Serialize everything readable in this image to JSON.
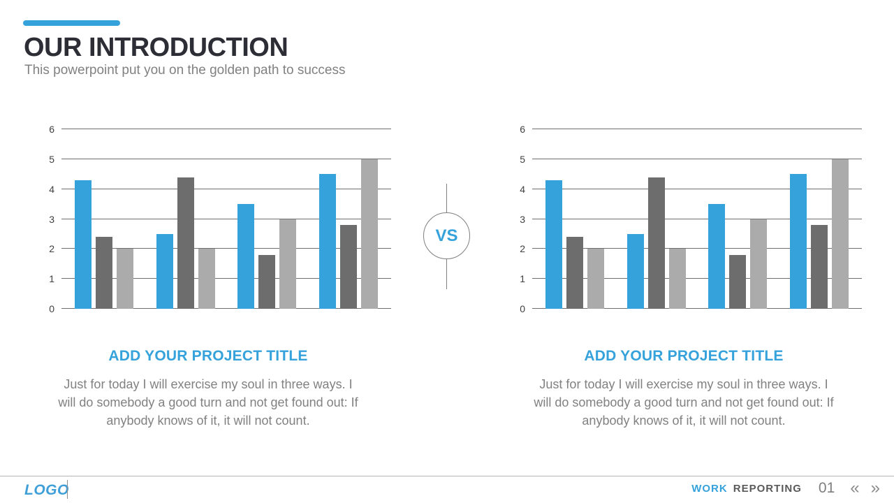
{
  "header": {
    "title": "OUR INTRODUCTION",
    "subtitle": "This powerpoint put you on the golden path to success"
  },
  "vs_label": "VS",
  "captions": [
    {
      "title": "ADD YOUR PROJECT TITLE",
      "body": "Just for today I will exercise my soul in three ways. I will do somebody a good turn and not get found out: If anybody knows of it, it will not count."
    },
    {
      "title": "ADD YOUR PROJECT TITLE",
      "body": "Just for today I will exercise my soul in three ways. I will do somebody a good turn and not get found out: If anybody knows of it, it will not count."
    }
  ],
  "footer": {
    "logo": "LOGO",
    "work": "WORK",
    "reporting": "REPORTING",
    "page_number": "01",
    "prev_icon": "«",
    "next_icon": "»"
  },
  "colors": {
    "accent_blue": "#35a2db",
    "bar_dark_gray": "#6d6d6d",
    "bar_light_gray": "#ababab",
    "gridline": "#6f6f6f",
    "title_text": "#2d2d36",
    "body_text": "#818181"
  },
  "chart_data": [
    {
      "type": "bar",
      "title": "",
      "categories": [
        "",
        "",
        "",
        ""
      ],
      "series": [
        {
          "name": "blue",
          "color": "#35a2db",
          "values": [
            4.3,
            2.5,
            3.5,
            4.5
          ]
        },
        {
          "name": "dark-gray",
          "color": "#6d6d6d",
          "values": [
            2.4,
            4.4,
            1.8,
            2.8
          ]
        },
        {
          "name": "light-gray",
          "color": "#ababab",
          "values": [
            2.0,
            2.0,
            3.0,
            5.0
          ]
        }
      ],
      "ylim": [
        0,
        6
      ],
      "yticks": [
        0,
        1,
        2,
        3,
        4,
        5,
        6
      ],
      "grid": true,
      "legend": false
    },
    {
      "type": "bar",
      "title": "",
      "categories": [
        "",
        "",
        "",
        ""
      ],
      "series": [
        {
          "name": "blue",
          "color": "#35a2db",
          "values": [
            4.3,
            2.5,
            3.5,
            4.5
          ]
        },
        {
          "name": "dark-gray",
          "color": "#6d6d6d",
          "values": [
            2.4,
            4.4,
            1.8,
            2.8
          ]
        },
        {
          "name": "light-gray",
          "color": "#ababab",
          "values": [
            2.0,
            2.0,
            3.0,
            5.0
          ]
        }
      ],
      "ylim": [
        0,
        6
      ],
      "yticks": [
        0,
        1,
        2,
        3,
        4,
        5,
        6
      ],
      "grid": true,
      "legend": false
    }
  ]
}
